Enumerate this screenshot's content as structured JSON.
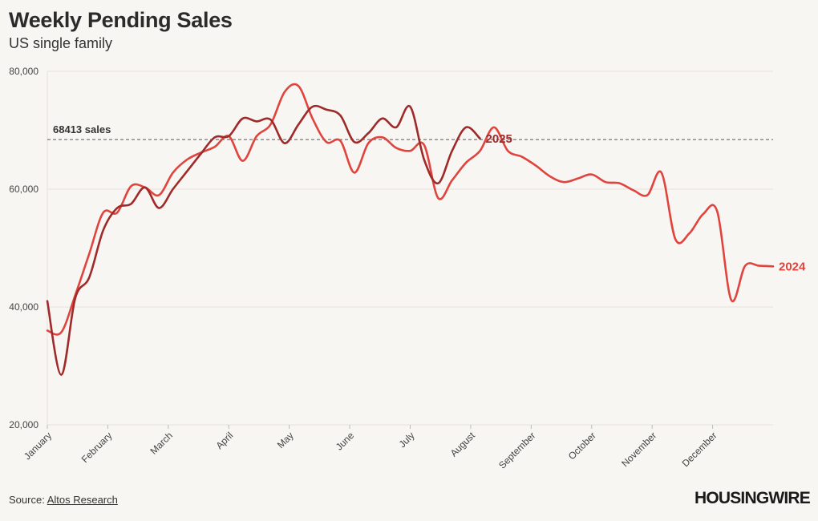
{
  "header": {
    "title": "Weekly Pending Sales",
    "subtitle": "US single family"
  },
  "footer": {
    "source_label": "Source:",
    "source_link": "Altos Research",
    "brand": "HOUSINGWIRE"
  },
  "colors": {
    "background": "#f8f6f2",
    "series_2025": "#9e2a2a",
    "series_2024": "#e0443e",
    "reference_line": "#555555",
    "gridline": "#e6e3de"
  },
  "chart_data": {
    "type": "line",
    "title": "Weekly Pending Sales",
    "subtitle": "US single family",
    "xlabel": "",
    "ylabel": "",
    "ylim": [
      20000,
      80000
    ],
    "yticks": [
      20000,
      40000,
      60000,
      80000
    ],
    "ytick_labels": [
      "20,000",
      "40,000",
      "60,000",
      "80,000"
    ],
    "x_week_range": [
      1,
      53
    ],
    "month_labels": [
      "January",
      "February",
      "March",
      "April",
      "May",
      "June",
      "July",
      "August",
      "September",
      "October",
      "November",
      "December"
    ],
    "grid": "horizontal",
    "legend": "inline line-end labels",
    "reference_line": {
      "value": 68413,
      "label": "68413 sales"
    },
    "series": [
      {
        "name": "2024",
        "x": [
          1,
          2,
          3,
          4,
          5,
          6,
          7,
          8,
          9,
          10,
          11,
          12,
          13,
          14,
          15,
          16,
          17,
          18,
          19,
          20,
          21,
          22,
          23,
          24,
          25,
          26,
          27,
          28,
          29,
          30,
          31,
          32,
          33,
          34,
          35,
          36,
          37,
          38,
          39,
          40,
          41,
          42,
          43,
          44,
          45,
          46,
          47,
          48,
          49,
          50,
          51,
          52,
          53
        ],
        "values": [
          36000,
          35700,
          42000,
          49000,
          56000,
          56000,
          60500,
          60300,
          59000,
          62800,
          65000,
          66200,
          67200,
          69000,
          64800,
          69000,
          71000,
          76500,
          77500,
          72000,
          68000,
          68200,
          62800,
          67800,
          68800,
          67000,
          66500,
          67500,
          58500,
          61500,
          64500,
          66500,
          70500,
          66500,
          65500,
          64000,
          62200,
          61200,
          61800,
          62500,
          61200,
          61000,
          59800,
          59000,
          62800,
          51500,
          52500,
          55800,
          56200,
          41200,
          47000,
          47000,
          46900
        ]
      },
      {
        "name": "2025",
        "x": [
          1,
          2,
          3,
          4,
          5,
          6,
          7,
          8,
          9,
          10,
          11,
          12,
          13,
          14,
          15,
          16,
          17,
          18,
          19,
          20,
          21,
          22,
          23,
          24,
          25,
          26,
          27,
          28,
          29,
          30,
          31,
          32,
          33
        ],
        "values": [
          41000,
          28500,
          41500,
          45000,
          53000,
          56800,
          57500,
          60300,
          56800,
          60000,
          63000,
          66000,
          68800,
          69000,
          72000,
          71500,
          71800,
          67800,
          71000,
          74000,
          73500,
          72500,
          68000,
          69500,
          72000,
          70500,
          74000,
          65000,
          61000,
          66500,
          70500,
          68600,
          null
        ]
      }
    ]
  }
}
